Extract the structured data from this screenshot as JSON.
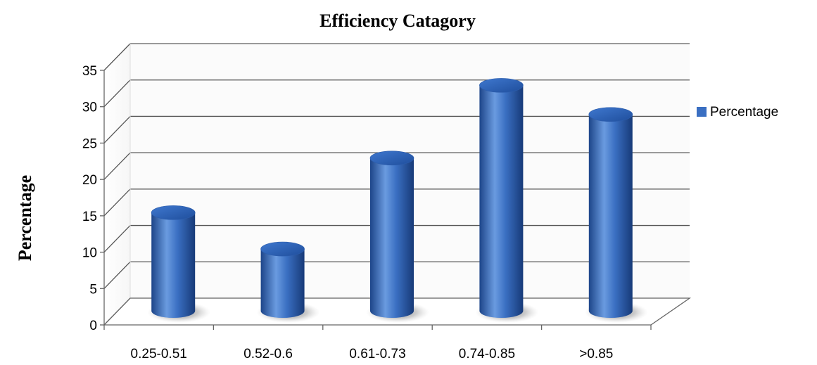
{
  "chart_data": {
    "type": "bar",
    "title": "Efficiency Catagory",
    "xlabel": "",
    "ylabel": "Percentage",
    "categories": [
      "0.25-0.51",
      "0.52-0.6",
      "0.61-0.73",
      "0.74-0.85",
      ">0.85"
    ],
    "series": [
      {
        "name": "Percentage",
        "values": [
          13.5,
          8.5,
          21,
          31,
          27
        ]
      }
    ],
    "ylim": [
      0,
      35
    ],
    "yticks": [
      0,
      5,
      10,
      15,
      20,
      25,
      30,
      35
    ],
    "grid": true,
    "legend_position": "right",
    "style": "3d-cylinder"
  },
  "colors": {
    "bar_main": "#3a6fc2",
    "bar_dark": "#1d4589",
    "bar_light": "#6a9be0",
    "gridline": "#555555"
  }
}
